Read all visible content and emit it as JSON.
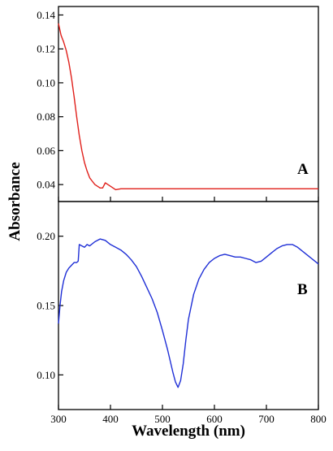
{
  "chart_data": [
    {
      "type": "line",
      "panel_label": "A",
      "xlabel": "Wavelength (nm)",
      "ylabel": "Absorbance",
      "xlim": [
        300,
        800
      ],
      "ylim": [
        0.03,
        0.145
      ],
      "xticks": [
        300,
        400,
        500,
        600,
        700,
        800
      ],
      "yticks": [
        0.04,
        0.06,
        0.08,
        0.1,
        0.12,
        0.14
      ],
      "ytick_labels": [
        "0.04",
        "0.06",
        "0.08",
        "0.10",
        "0.12",
        "0.14"
      ],
      "grid": false,
      "series": [
        {
          "color": "#e0201b",
          "x": [
            300,
            305,
            310,
            315,
            320,
            325,
            330,
            335,
            340,
            345,
            350,
            355,
            360,
            365,
            370,
            375,
            380,
            385,
            390,
            395,
            400,
            405,
            410,
            420,
            450,
            500,
            550,
            600,
            650,
            700,
            750,
            800
          ],
          "y": [
            0.135,
            0.128,
            0.124,
            0.119,
            0.112,
            0.103,
            0.092,
            0.08,
            0.069,
            0.06,
            0.053,
            0.048,
            0.044,
            0.042,
            0.04,
            0.039,
            0.038,
            0.038,
            0.041,
            0.04,
            0.039,
            0.038,
            0.037,
            0.0375,
            0.0375,
            0.0375,
            0.0375,
            0.0375,
            0.0375,
            0.0375,
            0.0375,
            0.0375
          ]
        }
      ]
    },
    {
      "type": "line",
      "panel_label": "B",
      "xlabel": "Wavelength (nm)",
      "ylabel": "Absorbance",
      "xlim": [
        300,
        800
      ],
      "ylim": [
        0.075,
        0.225
      ],
      "xticks": [
        300,
        400,
        500,
        600,
        700,
        800
      ],
      "xtick_labels": [
        "300",
        "400",
        "500",
        "600",
        "700",
        "800"
      ],
      "yticks": [
        0.1,
        0.15,
        0.2
      ],
      "ytick_labels": [
        "0.10",
        "0.15",
        "0.20"
      ],
      "grid": false,
      "series": [
        {
          "color": "#1f2fd6",
          "x": [
            300,
            303,
            306,
            310,
            315,
            320,
            325,
            330,
            335,
            338,
            340,
            345,
            350,
            355,
            360,
            370,
            380,
            390,
            400,
            410,
            420,
            430,
            440,
            450,
            460,
            470,
            480,
            490,
            500,
            510,
            520,
            525,
            530,
            535,
            540,
            545,
            550,
            560,
            570,
            580,
            590,
            600,
            610,
            620,
            630,
            640,
            650,
            660,
            670,
            680,
            690,
            700,
            710,
            720,
            730,
            740,
            750,
            760,
            770,
            780,
            790,
            800
          ],
          "y": [
            0.137,
            0.15,
            0.16,
            0.168,
            0.174,
            0.177,
            0.179,
            0.181,
            0.181,
            0.182,
            0.194,
            0.193,
            0.192,
            0.194,
            0.193,
            0.196,
            0.198,
            0.197,
            0.194,
            0.192,
            0.19,
            0.187,
            0.183,
            0.178,
            0.171,
            0.163,
            0.155,
            0.145,
            0.132,
            0.118,
            0.102,
            0.095,
            0.091,
            0.096,
            0.108,
            0.125,
            0.14,
            0.158,
            0.169,
            0.176,
            0.181,
            0.184,
            0.186,
            0.187,
            0.186,
            0.185,
            0.185,
            0.184,
            0.183,
            0.181,
            0.182,
            0.185,
            0.188,
            0.191,
            0.193,
            0.194,
            0.194,
            0.192,
            0.189,
            0.186,
            0.183,
            0.18
          ]
        }
      ]
    }
  ]
}
